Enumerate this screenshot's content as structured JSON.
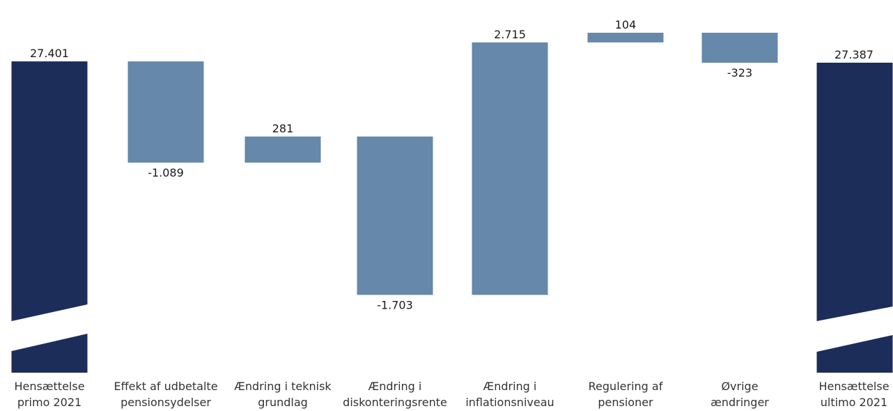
{
  "chart_data": {
    "type": "bar",
    "subtype": "waterfall",
    "title": "",
    "xlabel": "",
    "ylabel": "",
    "axis_break": true,
    "grid": false,
    "legend": "none",
    "colors": {
      "total": "#1d2d5a",
      "delta": "#6688aa"
    },
    "categories": [
      [
        "Hensættelse",
        "primo 2021"
      ],
      [
        "Effekt af udbetalte",
        "pensionsydelser"
      ],
      [
        "Ændring i teknisk",
        "grundlag"
      ],
      [
        "Ændring i",
        "diskonteringsrente"
      ],
      [
        "Ændring i",
        "inflationsniveau"
      ],
      [
        "Regulering af",
        "pensioner"
      ],
      [
        "Øvrige",
        "ændringer"
      ],
      [
        "Hensættelse",
        "ultimo 2021"
      ]
    ],
    "values": [
      27401,
      -1089,
      281,
      -1703,
      2715,
      104,
      -323,
      27387
    ],
    "value_labels": [
      "27.401",
      "-1.089",
      "281",
      "-1.703",
      "2.715",
      "104",
      "-323",
      "27.387"
    ],
    "bar_kind": [
      "total",
      "delta",
      "delta",
      "delta",
      "delta",
      "delta",
      "delta",
      "total"
    ]
  }
}
